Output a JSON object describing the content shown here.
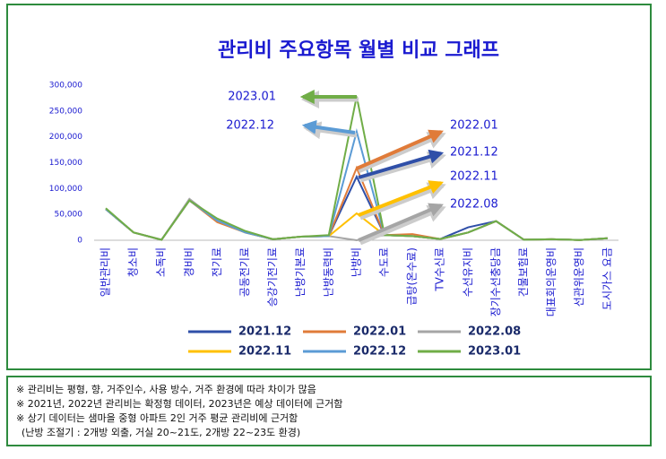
{
  "chart_data": {
    "type": "line",
    "title": "관리비 주요항목 월별 비교 그래프",
    "categories": [
      "일반관리비",
      "청소비",
      "소독비",
      "경비비",
      "전기료",
      "공동전기료",
      "승강기전기료",
      "난방기본료",
      "난방동력비",
      "난방비",
      "수도료",
      "급탕(온수료)",
      "TV수신료",
      "수선유지비",
      "장기수선충당금",
      "건물보험료",
      "대표회의운영비",
      "선관위운영비",
      "도시가스 요금"
    ],
    "series": [
      {
        "name": "2021.12",
        "color": "#2f4fa8",
        "values": [
          60000,
          15000,
          1000,
          77000,
          38000,
          15000,
          2000,
          7000,
          8000,
          123000,
          10000,
          8000,
          2500,
          25000,
          37000,
          1000,
          2000,
          500,
          4000
        ]
      },
      {
        "name": "2022.01",
        "color": "#e07b39",
        "values": [
          60000,
          15000,
          1000,
          77000,
          35000,
          15000,
          2000,
          7000,
          8000,
          140000,
          10000,
          12000,
          2500,
          15000,
          37000,
          1000,
          2000,
          500,
          4000
        ]
      },
      {
        "name": "2022.08",
        "color": "#a5a5a5",
        "values": [
          60000,
          15000,
          1000,
          80000,
          38000,
          15000,
          2000,
          7000,
          8000,
          0,
          10000,
          8000,
          2500,
          15000,
          37000,
          1000,
          2000,
          500,
          4000
        ]
      },
      {
        "name": "2022.11",
        "color": "#ffc000",
        "values": [
          60000,
          15000,
          1000,
          77000,
          38000,
          15000,
          2000,
          7000,
          8000,
          52000,
          10000,
          8000,
          2500,
          15000,
          37000,
          1000,
          2000,
          500,
          4000
        ]
      },
      {
        "name": "2022.12",
        "color": "#5b9bd5",
        "values": [
          60000,
          15000,
          1000,
          77000,
          38000,
          15000,
          2000,
          7000,
          8000,
          210000,
          10000,
          8000,
          2500,
          15000,
          37000,
          1000,
          2000,
          500,
          4000
        ]
      },
      {
        "name": "2023.01",
        "color": "#70ad47",
        "values": [
          62000,
          15000,
          1000,
          77000,
          42000,
          18000,
          2000,
          7000,
          10000,
          278000,
          10000,
          8000,
          2500,
          15000,
          37000,
          1000,
          2000,
          500,
          4000
        ]
      }
    ],
    "ylim": [
      0,
      300000
    ],
    "yticks": [
      0,
      {
        "value": 50000,
        "label": "50,000"
      },
      {
        "value": 100000,
        "label": "100,000"
      },
      {
        "value": 150000,
        "label": "150,000"
      },
      {
        "value": 200000,
        "label": "200,000"
      },
      {
        "value": 250000,
        "label": "250,000"
      },
      {
        "value": 300000,
        "label": "300,000"
      }
    ],
    "grid": false
  },
  "notes": [
    "※ 관리비는 평형, 향, 거주인수, 사용 방수, 거주 환경에 따라 차이가 많음",
    "※ 2021년, 2022년 관리비는 확정형 데이터, 2023년은 예상 데이터에 근거함",
    "※ 상기 데이터는 샘마을 중형 아파트 2인 거주 평균 관리비에 근거함",
    "(난방 조절기 : 2개방 외출, 거실 20~21도, 2개방 22~23도 환경)"
  ]
}
